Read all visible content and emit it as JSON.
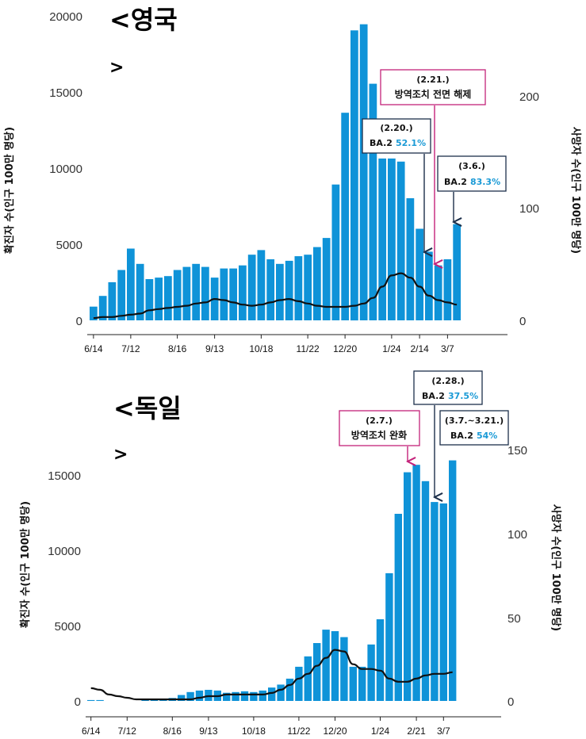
{
  "colors": {
    "bar": "#0f93d8",
    "death_line": "#111111",
    "highlight": "#1a9ad6",
    "policy": "#c4227a",
    "variant": "#1c2f4a"
  },
  "chart_data": [
    {
      "type": "bar",
      "title": "<영국",
      "title_end": ">",
      "ylabel": "확진자 수(인구 100만 명당)",
      "y2label": "사망자 수(인구 100만 명당)",
      "ylim": [
        0,
        20000
      ],
      "y2lim": [
        0,
        272
      ],
      "y_ticks": [
        "0",
        "5000",
        "10000",
        "15000",
        "20000"
      ],
      "y2_ticks": [
        "0",
        "100",
        "200"
      ],
      "x_tick_labels": [
        "6/14",
        "7/12",
        "8/16",
        "9/13",
        "10/18",
        "11/22",
        "12/20",
        "1/24",
        "2/14",
        "3/7"
      ],
      "x_tick_week_index": [
        0,
        4,
        9,
        13,
        18,
        23,
        27,
        32,
        35,
        38
      ],
      "series": [
        {
          "name": "확진자 수(인구 100만 명당)",
          "kind": "bar",
          "values": [
            900,
            1600,
            2500,
            3300,
            4700,
            3700,
            2700,
            2800,
            2900,
            3300,
            3500,
            3700,
            3500,
            2800,
            3400,
            3400,
            3600,
            4300,
            4600,
            4000,
            3700,
            3900,
            4200,
            4300,
            4800,
            5400,
            8900,
            13600,
            19000,
            19400,
            15500,
            10600,
            10600,
            10400,
            8000,
            6000,
            4500,
            3600,
            4000,
            6300
          ],
          "values_unit": "cases per 1M, estimated"
        },
        {
          "name": "사망자 수(인구 100만 명당)",
          "kind": "line",
          "values": [
            2,
            3,
            3,
            4,
            5,
            6,
            9,
            10,
            11,
            12,
            13,
            15,
            16,
            19,
            18,
            16,
            14,
            13,
            14,
            16,
            18,
            19,
            17,
            15,
            13,
            12,
            12,
            12,
            13,
            15,
            20,
            30,
            40,
            42,
            38,
            30,
            22,
            18,
            16,
            14
          ]
        }
      ],
      "annotations": [
        {
          "type": "policy",
          "date": "(2.21.)",
          "text": "방역조치 전면 해제",
          "week_index": 36
        },
        {
          "type": "variant",
          "date": "(2.20.)",
          "text": "BA.2",
          "pct": "52.1%",
          "week_index": 35
        },
        {
          "type": "variant",
          "date": "(3.6.)",
          "text": "BA.2",
          "pct": "83.3%",
          "week_index": 39
        }
      ]
    },
    {
      "type": "bar",
      "title": "<독일",
      "title_end": ">",
      "ylabel": "확진자 수(인구 100만 명당)",
      "y2label": "사망자 수(인구 100만 명당)",
      "ylim": [
        0,
        16500
      ],
      "y2lim": [
        0,
        157
      ],
      "y_ticks": [
        "0",
        "5000",
        "10000",
        "15000"
      ],
      "y2_ticks": [
        "0",
        "50",
        "100",
        "150"
      ],
      "x_tick_labels": [
        "6/14",
        "7/12",
        "8/16",
        "9/13",
        "10/18",
        "11/22",
        "12/20",
        "1/24",
        "2/21",
        "3/7"
      ],
      "x_tick_week_index": [
        0,
        4,
        9,
        13,
        18,
        23,
        27,
        32,
        36,
        39
      ],
      "series": [
        {
          "name": "확진자 수(인구 100만 명당)",
          "kind": "bar",
          "values": [
            60,
            60,
            0,
            0,
            0,
            0,
            100,
            120,
            150,
            200,
            400,
            600,
            700,
            750,
            700,
            550,
            600,
            650,
            600,
            700,
            900,
            1100,
            1500,
            2300,
            3000,
            3900,
            4800,
            4700,
            4300,
            2300,
            2300,
            3800,
            5500,
            8600,
            12600,
            15400,
            15900,
            14800,
            13400,
            13300,
            16200
          ],
          "values_unit": "cases per 1M, estimated"
        },
        {
          "name": "사망자 수(인구 100만 명당)",
          "kind": "line",
          "values": [
            8,
            7,
            4,
            3,
            2,
            1,
            1,
            1,
            1,
            1,
            1,
            1,
            2,
            3,
            3,
            4,
            4,
            4,
            4,
            4,
            5,
            7,
            10,
            14,
            17,
            22,
            27,
            32,
            31,
            23,
            20,
            20,
            19,
            14,
            12,
            12,
            14,
            16,
            17,
            17,
            18
          ]
        }
      ],
      "annotations": [
        {
          "type": "policy",
          "date": "(2.7.)",
          "text": "방역조치 완화",
          "week_index": 35
        },
        {
          "type": "variant",
          "date": "(2.28.)",
          "text": "BA.2",
          "pct": "37.5%",
          "week_index": 38
        },
        {
          "type": "variant",
          "date": "(3.7.~3.21.)",
          "text": "BA.2",
          "pct": "54%",
          "week_index": 40
        }
      ]
    }
  ]
}
